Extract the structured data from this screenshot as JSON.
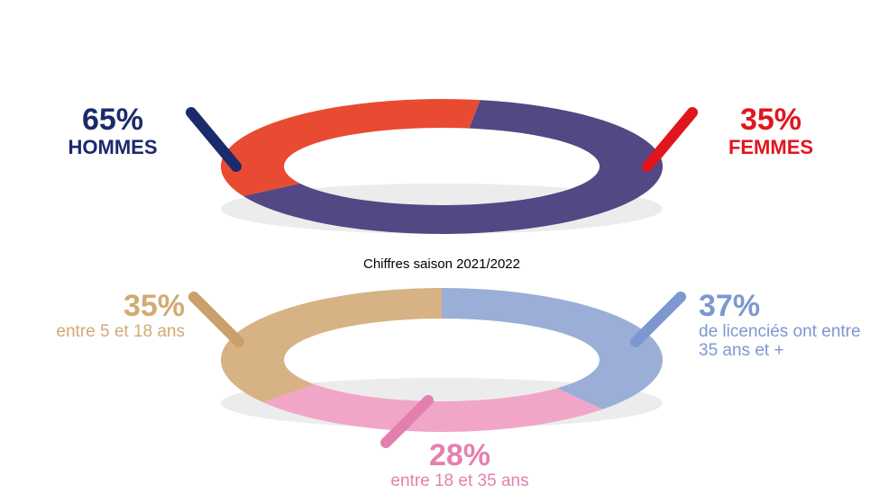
{
  "caption": "Chiffres saison 2021/2022",
  "chart_data": [
    {
      "type": "donut",
      "categories": [
        "HOMMES",
        "FEMMES"
      ],
      "values": [
        65,
        35
      ],
      "value_labels": [
        "65%",
        "35%"
      ],
      "colors": [
        "#534784",
        "#e84b31"
      ]
    },
    {
      "type": "donut",
      "categories": [
        "de licenciés ont entre 35 ans et +",
        "entre 18 et 35 ans",
        "entre 5 et 18 ans"
      ],
      "values": [
        37,
        28,
        35
      ],
      "value_labels": [
        "37%",
        "28%",
        "35%"
      ],
      "colors": [
        "#9aaed8",
        "#f1a6c8",
        "#d6b284"
      ]
    }
  ]
}
